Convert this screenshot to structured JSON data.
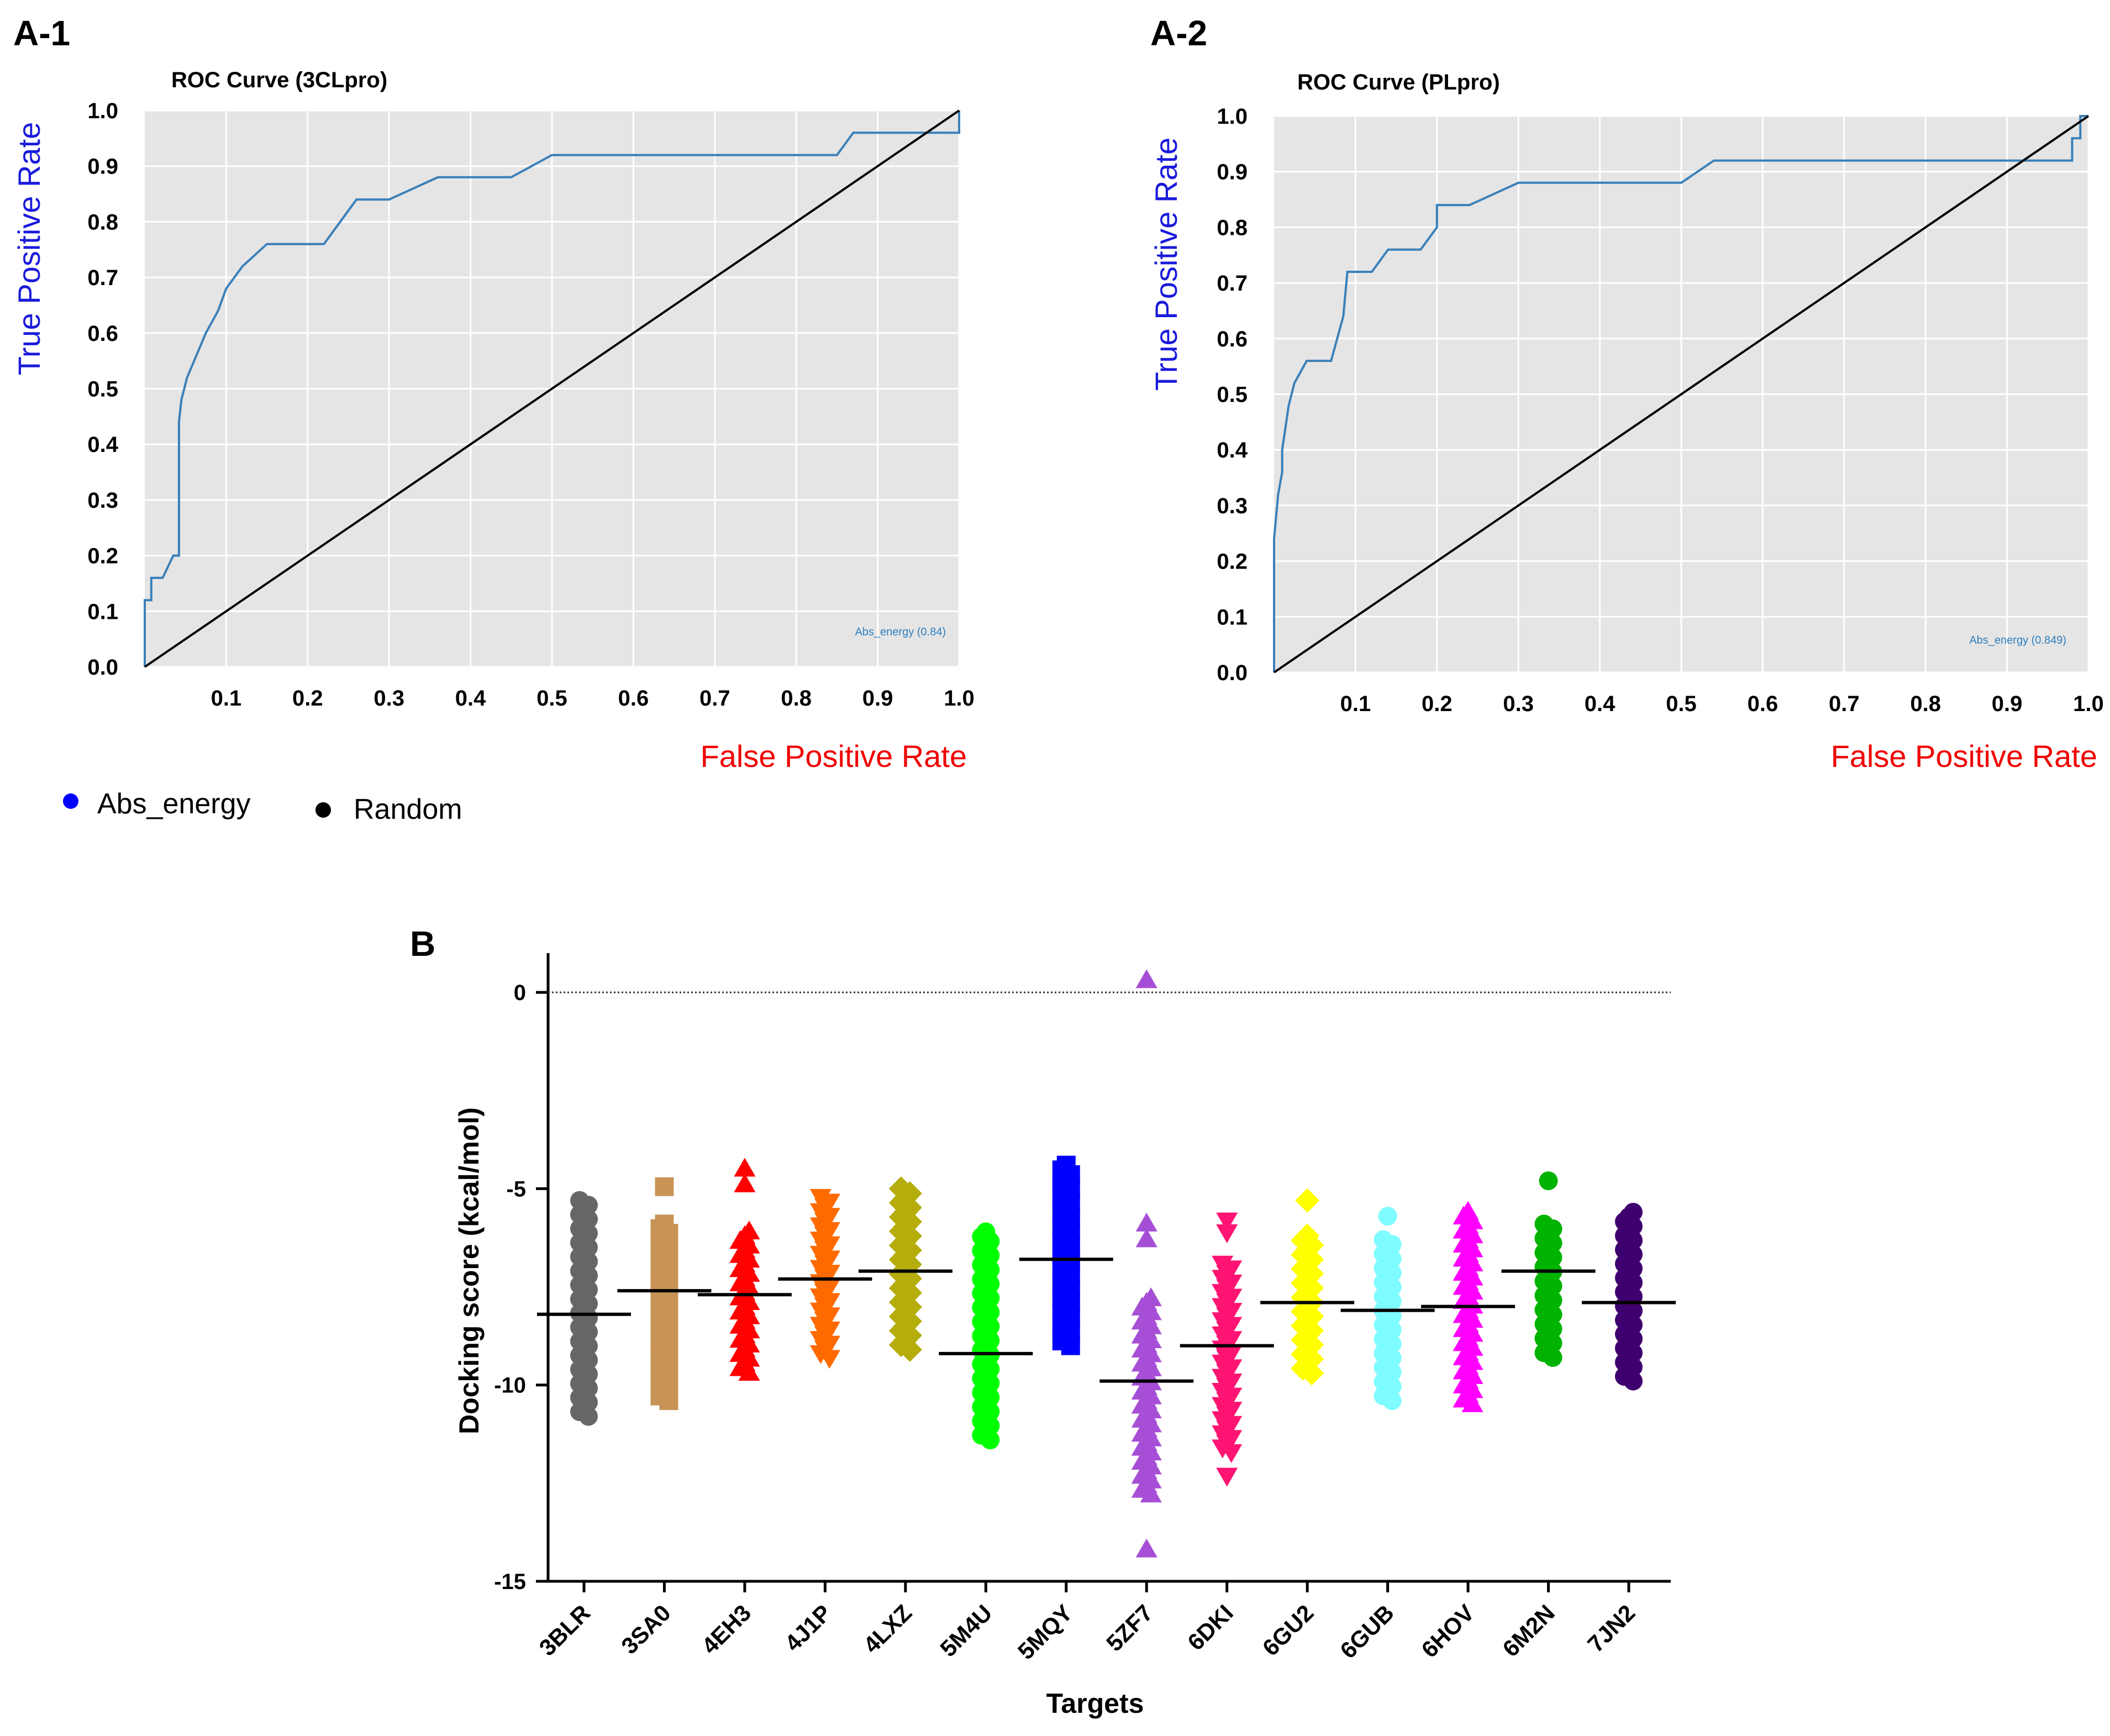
{
  "panels": {
    "a1": "A-1",
    "a2": "A-2",
    "b": "B"
  },
  "legend": [
    {
      "label": "Abs_energy",
      "color": "#0000ff"
    },
    {
      "label": "Random",
      "color": "#000000"
    }
  ],
  "chart_data": [
    {
      "type": "line",
      "id": "A-1",
      "title": "ROC Curve (3CLpro)",
      "xlabel": "False Positive Rate",
      "ylabel": "True Positive Rate",
      "xlim": [
        0,
        1
      ],
      "ylim": [
        0,
        1
      ],
      "xticks": [
        "0.1",
        "0.2",
        "0.3",
        "0.4",
        "0.5",
        "0.6",
        "0.7",
        "0.8",
        "0.9",
        "1.0"
      ],
      "yticks": [
        "0.0",
        "0.1",
        "0.2",
        "0.3",
        "0.4",
        "0.5",
        "0.6",
        "0.7",
        "0.8",
        "0.9",
        "1.0"
      ],
      "background": "#e5e5e5",
      "grid": true,
      "auc_label": "Abs_energy (0.84)",
      "series": [
        {
          "name": "Abs_energy",
          "color": "#3a80b9",
          "x": [
            0,
            0,
            0.008,
            0.008,
            0.022,
            0.035,
            0.042,
            0.042,
            0.045,
            0.052,
            0.075,
            0.09,
            0.1,
            0.12,
            0.15,
            0.22,
            0.26,
            0.3,
            0.36,
            0.45,
            0.5,
            0.85,
            0.87,
            1.0,
            1.0
          ],
          "y": [
            0,
            0.12,
            0.12,
            0.16,
            0.16,
            0.2,
            0.2,
            0.44,
            0.48,
            0.52,
            0.6,
            0.64,
            0.68,
            0.72,
            0.76,
            0.76,
            0.84,
            0.84,
            0.88,
            0.88,
            0.92,
            0.92,
            0.96,
            0.96,
            1.0
          ]
        },
        {
          "name": "Random",
          "color": "#000000",
          "x": [
            0,
            1
          ],
          "y": [
            0,
            1
          ]
        }
      ]
    },
    {
      "type": "line",
      "id": "A-2",
      "title": "ROC Curve (PLpro)",
      "xlabel": "False Positive Rate",
      "ylabel": "True Positive Rate",
      "xlim": [
        0,
        1
      ],
      "ylim": [
        0,
        1
      ],
      "xticks": [
        "0.1",
        "0.2",
        "0.3",
        "0.4",
        "0.5",
        "0.6",
        "0.7",
        "0.8",
        "0.9",
        "1.0"
      ],
      "yticks": [
        "0.0",
        "0.1",
        "0.2",
        "0.3",
        "0.4",
        "0.5",
        "0.6",
        "0.7",
        "0.8",
        "0.9",
        "1.0"
      ],
      "background": "#e5e5e5",
      "grid": true,
      "auc_label": "Abs_energy (0.849)",
      "series": [
        {
          "name": "Abs_energy",
          "color": "#3a80b9",
          "x": [
            0,
            0,
            0.005,
            0.01,
            0.01,
            0.018,
            0.025,
            0.04,
            0.07,
            0.085,
            0.09,
            0.12,
            0.14,
            0.18,
            0.2,
            0.2,
            0.24,
            0.3,
            0.5,
            0.54,
            0.98,
            0.98,
            0.99,
            0.99,
            1.0
          ],
          "y": [
            0,
            0.24,
            0.32,
            0.36,
            0.4,
            0.48,
            0.52,
            0.56,
            0.56,
            0.64,
            0.72,
            0.72,
            0.76,
            0.76,
            0.8,
            0.84,
            0.84,
            0.88,
            0.88,
            0.92,
            0.92,
            0.96,
            0.96,
            1.0,
            1.0
          ]
        },
        {
          "name": "Random",
          "color": "#000000",
          "x": [
            0,
            1
          ],
          "y": [
            0,
            1
          ]
        }
      ]
    },
    {
      "type": "scatter",
      "id": "B",
      "title": "",
      "xlabel": "Targets",
      "ylabel": "Docking score (kcal/mol)",
      "ylim": [
        -15,
        1
      ],
      "yticks": [
        0,
        -5,
        -10,
        -15
      ],
      "yticklabels": [
        "0",
        "-5",
        "-10",
        "-15"
      ],
      "reference_line": 0,
      "categories": [
        "3BLR",
        "3SA0",
        "4EH3",
        "4J1P",
        "4LXZ",
        "5M4U",
        "5MQY",
        "5ZF7",
        "6DKI",
        "6GU2",
        "6GUB",
        "6HOV",
        "6M2N",
        "7JN2"
      ],
      "series": [
        {
          "name": "3BLR",
          "color": "#666666",
          "marker": "circle",
          "min": -10.8,
          "max": -5.3,
          "mean": -8.2,
          "extra_points": []
        },
        {
          "name": "3SA0",
          "color": "#c89456",
          "marker": "square",
          "min": -10.4,
          "max": -5.9,
          "mean": -7.6,
          "extra_points": [
            -4.95
          ]
        },
        {
          "name": "4EH3",
          "color": "#ff0000",
          "marker": "triangle-up",
          "min": -9.7,
          "max": -6.1,
          "mean": -7.7,
          "extra_points": [
            -4.5,
            -4.9
          ]
        },
        {
          "name": "4J1P",
          "color": "#ff6a00",
          "marker": "triangle-down",
          "min": -9.3,
          "max": -5.2,
          "mean": -7.3,
          "extra_points": []
        },
        {
          "name": "4LXZ",
          "color": "#b5ad0c",
          "marker": "diamond",
          "min": -9.1,
          "max": -5.0,
          "mean": -7.1,
          "extra_points": []
        },
        {
          "name": "5M4U",
          "color": "#00ff00",
          "marker": "circle",
          "min": -11.4,
          "max": -6.1,
          "mean": -9.2,
          "extra_points": []
        },
        {
          "name": "5MQY",
          "color": "#0000ff",
          "marker": "square",
          "min": -9.0,
          "max": -4.4,
          "mean": -6.8,
          "extra_points": []
        },
        {
          "name": "5ZF7",
          "color": "#a64fd6",
          "marker": "triangle-up",
          "min": -12.8,
          "max": -7.8,
          "mean": -9.9,
          "extra_points": [
            0.3,
            -5.9,
            -6.3,
            -14.2
          ]
        },
        {
          "name": "6DKI",
          "color": "#ff1473",
          "marker": "triangle-down",
          "min": -11.7,
          "max": -6.9,
          "mean": -9.0,
          "extra_points": [
            -5.8,
            -6.1,
            -12.3
          ]
        },
        {
          "name": "6GU2",
          "color": "#ffff00",
          "marker": "diamond",
          "min": -9.7,
          "max": -6.2,
          "mean": -7.9,
          "extra_points": [
            -5.3
          ]
        },
        {
          "name": "6GUB",
          "color": "#7ffcff",
          "marker": "circle",
          "min": -10.4,
          "max": -6.3,
          "mean": -8.1,
          "extra_points": [
            -5.7
          ]
        },
        {
          "name": "6HOV",
          "color": "#ff00ff",
          "marker": "triangle-up",
          "min": -10.5,
          "max": -5.6,
          "mean": -8.0,
          "extra_points": []
        },
        {
          "name": "6M2N",
          "color": "#00b300",
          "marker": "circle",
          "min": -9.3,
          "max": -5.9,
          "mean": -7.1,
          "extra_points": [
            -4.8
          ]
        },
        {
          "name": "7JN2",
          "color": "#3e006e",
          "marker": "circle",
          "min": -9.9,
          "max": -5.6,
          "mean": -7.9,
          "extra_points": []
        }
      ]
    }
  ]
}
